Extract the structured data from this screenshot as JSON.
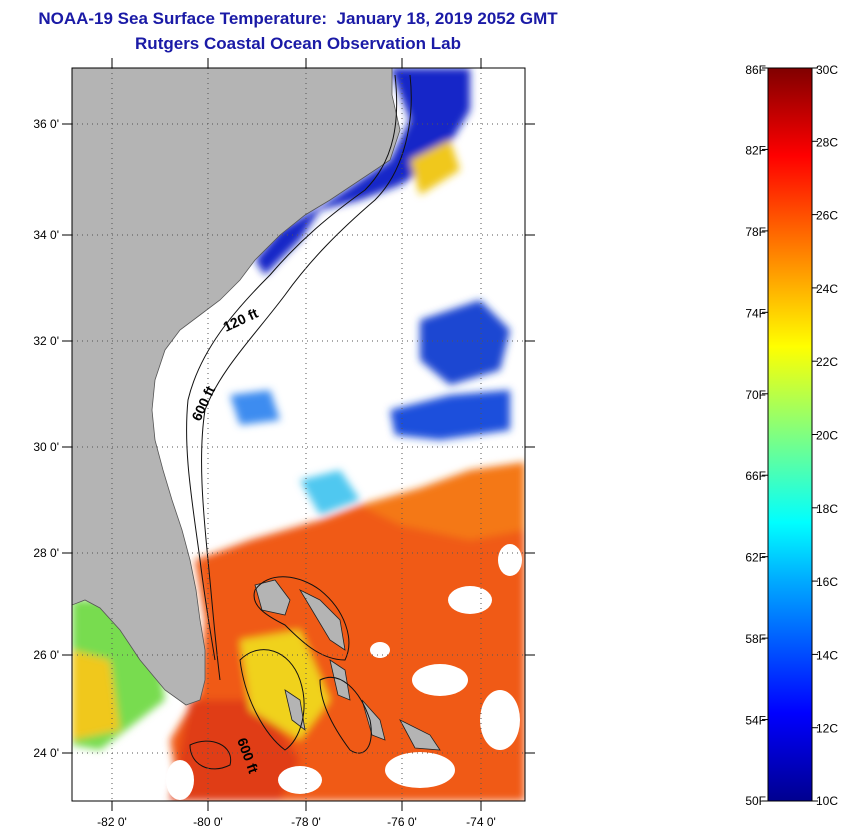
{
  "header": {
    "title": "NOAA-19 Sea Surface Temperature:  January 18, 2019 2052 GMT",
    "subtitle": "Rutgers Coastal Ocean Observation Lab"
  },
  "map": {
    "lon_labels": [
      "-82 0'",
      "-80 0'",
      "-78 0'",
      "-76 0'",
      "-74 0'"
    ],
    "lat_labels": [
      "36 0'",
      "34 0'",
      "32 0'",
      "30 0'",
      "28 0'",
      "26 0'",
      "24 0'"
    ],
    "contour_labels": [
      "120 ft",
      "600 ft",
      "600 ft"
    ],
    "colors": {
      "land": "#b4b4b4",
      "cloud": "#ffffff",
      "warm": "#f05a14",
      "cold": "#1428c8"
    }
  },
  "colorbar": {
    "fahrenheit_labels": [
      "86F",
      "82F",
      "78F",
      "74F",
      "70F",
      "66F",
      "62F",
      "58F",
      "54F",
      "50F"
    ],
    "celsius_labels": [
      "30C",
      "28C",
      "26C",
      "24C",
      "22C",
      "20C",
      "18C",
      "16C",
      "14C",
      "12C",
      "10C"
    ],
    "range_c": [
      10,
      30
    ]
  }
}
